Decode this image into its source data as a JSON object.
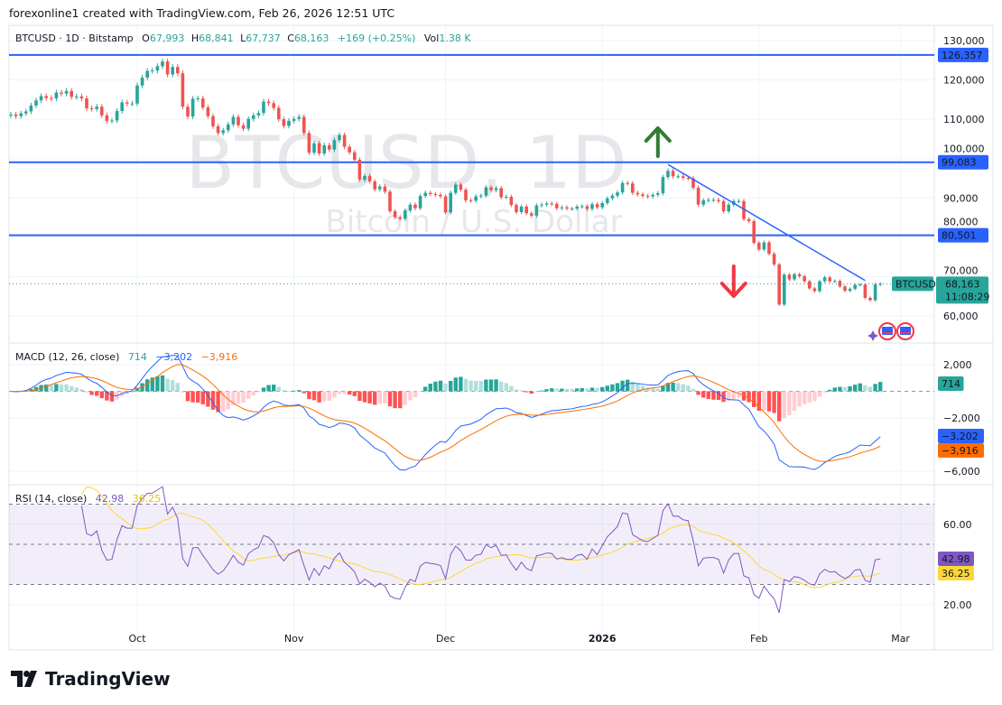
{
  "credit": "forexonline1 created with TradingView.com, Feb 26, 2026 12:51 UTC",
  "legend": {
    "symbol": "BTCUSD · 1D · Bitstamp",
    "o_label": "O",
    "o": "67,993",
    "h_label": "H",
    "h": "68,841",
    "l_label": "L",
    "l": "67,737",
    "c_label": "C",
    "c": "68,163",
    "change": "+169 (+0.25%)",
    "vol_label": "Vol",
    "vol": "1.38 K"
  },
  "watermark": {
    "title": "BTCUSD, 1D",
    "subtitle": "Bitcoin / U.S. Dollar"
  },
  "price_axis": {
    "ticks": [
      "130,000",
      "120,000",
      "110,000",
      "100,000",
      "90,000",
      "80,000",
      "70,000",
      "60,000"
    ],
    "tick_values": [
      130000,
      120000,
      110000,
      100000,
      90000,
      80000,
      70000,
      60000
    ]
  },
  "levels": [
    {
      "value": 126357,
      "label": "126,357"
    },
    {
      "value": 99083,
      "label": "99,083"
    },
    {
      "value": 80501,
      "label": "80,501"
    }
  ],
  "trendline": {
    "from": {
      "date": "2026-01-14",
      "price": 98500
    },
    "to": {
      "date": "2026-02-22",
      "price": 69000
    }
  },
  "current": {
    "symbol_label": "BTCUSD",
    "price": 68163,
    "price_label": "68,163",
    "countdown": "11:08:29"
  },
  "annotations": {
    "up_arrow": {
      "date": "2026-01-12",
      "color": "#2e7d32"
    },
    "down_arrow": {
      "date": "2026-01-27",
      "color": "#f23645"
    }
  },
  "time_axis": {
    "labels": [
      {
        "text": "Oct",
        "day": 25
      },
      {
        "text": "Nov",
        "day": 56
      },
      {
        "text": "Dec",
        "day": 86
      },
      {
        "text": "2026",
        "day": 117
      },
      {
        "text": "Feb",
        "day": 148
      },
      {
        "text": "Mar",
        "day": 176
      }
    ]
  },
  "macd": {
    "title": "MACD (12, 26, close)",
    "hist": "714",
    "macd": "−3,202",
    "signal": "−3,916",
    "ticks": [
      "2,000",
      "−2,000",
      "−6,000"
    ],
    "tick_values": [
      2000,
      -2000,
      -6000
    ]
  },
  "rsi": {
    "title": "RSI (14, close)",
    "rsi": "42.98",
    "ma": "36.25",
    "ticks": [
      "60.00",
      "20.00"
    ],
    "tick_values": [
      60,
      20
    ]
  },
  "colors": {
    "up": "#26a69a",
    "down": "#ef5350",
    "level": "#2962ff",
    "macd": "#2962ff",
    "signal": "#ff6d00",
    "rsi": "#7e57c2",
    "rsi_ma": "#fdd835"
  },
  "chart_data": {
    "type": "candlestick",
    "start_date": "2025-09-06",
    "end_date": "2026-02-26",
    "closes_thousands": [
      111.2,
      110.8,
      111.5,
      112.0,
      113.5,
      114.8,
      115.9,
      115.4,
      115.3,
      116.8,
      116.5,
      117.2,
      115.7,
      115.8,
      115.3,
      112.8,
      112.6,
      113.2,
      111.0,
      109.6,
      109.7,
      112.1,
      114.3,
      114.0,
      114.0,
      118.6,
      120.6,
      122.3,
      122.4,
      123.5,
      124.7,
      121.4,
      123.3,
      121.7,
      113.2,
      110.7,
      115.2,
      115.3,
      113.0,
      110.8,
      108.2,
      106.5,
      107.2,
      108.7,
      110.6,
      108.5,
      107.6,
      110.1,
      111.0,
      111.6,
      114.5,
      114.1,
      112.9,
      110.0,
      108.3,
      109.6,
      110.1,
      110.6,
      106.5,
      101.5,
      103.9,
      101.3,
      103.4,
      102.3,
      104.7,
      106.0,
      103.0,
      101.6,
      99.7,
      94.6,
      95.6,
      94.2,
      92.2,
      92.9,
      91.6,
      86.6,
      85.1,
      84.7,
      86.8,
      88.3,
      87.4,
      90.5,
      91.3,
      91.0,
      90.8,
      90.4,
      86.3,
      91.3,
      93.4,
      92.1,
      89.4,
      89.3,
      90.4,
      90.6,
      92.7,
      92.0,
      92.5,
      90.2,
      90.3,
      88.2,
      86.4,
      87.8,
      86.1,
      85.5,
      88.1,
      88.3,
      88.6,
      88.5,
      87.4,
      87.6,
      87.3,
      87.3,
      87.8,
      87.9,
      87.2,
      88.4,
      87.6,
      88.7,
      89.9,
      90.6,
      91.4,
      93.8,
      93.7,
      91.3,
      90.9,
      90.5,
      90.4,
      90.8,
      91.2,
      95.3,
      96.9,
      95.5,
      95.5,
      95.1,
      95.0,
      92.6,
      88.3,
      89.4,
      89.5,
      89.5,
      89.2,
      86.6,
      88.3,
      89.2,
      89.2,
      84.6,
      84.1,
      78.6,
      76.9,
      78.7,
      75.8,
      73.1,
      62.9,
      70.5,
      69.3,
      70.6,
      70.1,
      68.8,
      67.0,
      66.3,
      68.8,
      69.8,
      68.8,
      68.9,
      67.5,
      66.4,
      66.9,
      67.9,
      68.0,
      64.6,
      64.0,
      67.99,
      68.163
    ],
    "y_range": [
      60000,
      130000
    ]
  },
  "footer": {
    "brand": "TradingView"
  }
}
